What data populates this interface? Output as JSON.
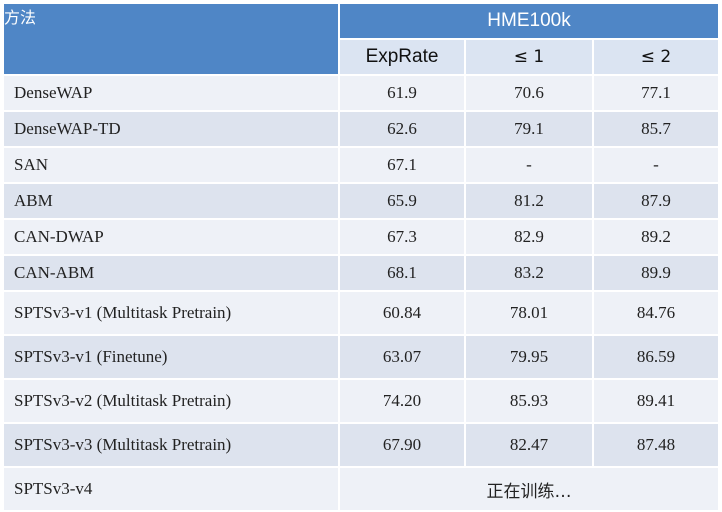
{
  "header": {
    "method_label": "方法",
    "dataset_label": "HME100k",
    "columns": [
      "ExpRate",
      "≤ 1",
      "≤ 2"
    ]
  },
  "rows": [
    {
      "name": "DenseWAP",
      "exprate": "61.9",
      "le1": "70.6",
      "le2": "77.1"
    },
    {
      "name": "DenseWAP-TD",
      "exprate": "62.6",
      "le1": "79.1",
      "le2": "85.7"
    },
    {
      "name": "SAN",
      "exprate": "67.1",
      "le1": "-",
      "le2": "-"
    },
    {
      "name": "ABM",
      "exprate": "65.9",
      "le1": "81.2",
      "le2": "87.9"
    },
    {
      "name": "CAN-DWAP",
      "exprate": "67.3",
      "le1": "82.9",
      "le2": "89.2"
    },
    {
      "name": "CAN-ABM",
      "exprate": "68.1",
      "le1": "83.2",
      "le2": "89.9"
    },
    {
      "name": "SPTSv3-v1 (Multitask Pretrain)",
      "exprate": "60.84",
      "le1": "78.01",
      "le2": "84.76"
    },
    {
      "name": "SPTSv3-v1 (Finetune)",
      "exprate": "63.07",
      "le1": "79.95",
      "le2": "86.59"
    },
    {
      "name": "SPTSv3-v2 (Multitask Pretrain)",
      "exprate": "74.20",
      "le1": "85.93",
      "le2": "89.41"
    },
    {
      "name": "SPTSv3-v3 (Multitask Pretrain)",
      "exprate": "67.90",
      "le1": "82.47",
      "le2": "87.48"
    }
  ],
  "last_row": {
    "name": "SPTSv3-v4",
    "status": "正在训练…"
  },
  "colors": {
    "header": "#4f86c6",
    "subheader": "#dbe4f2",
    "row_light": "#eef1f7",
    "row_dark": "#dde3ee"
  }
}
